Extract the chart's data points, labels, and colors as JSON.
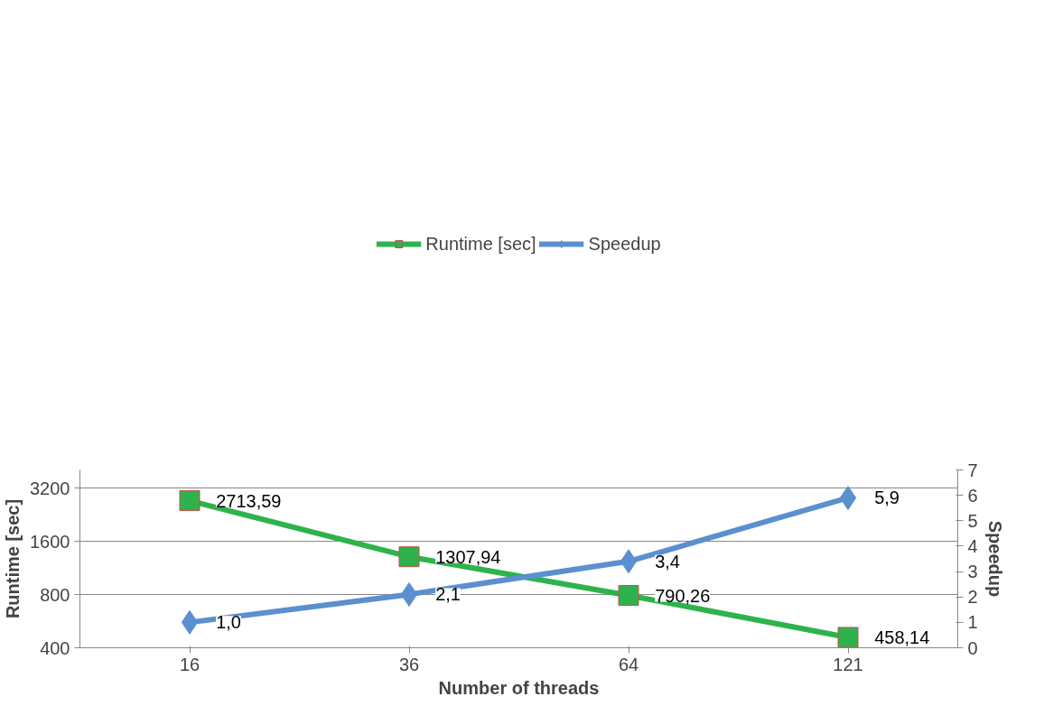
{
  "chart_data": {
    "type": "line",
    "xlabel": "Number of threads",
    "ylabel": "Runtime [sec]",
    "y2label": "Speedup",
    "categories": [
      "16",
      "36",
      "64",
      "121"
    ],
    "series": [
      {
        "name": "Runtime [sec]",
        "color": "#2eb34c",
        "marker": "square",
        "values": [
          2713.59,
          1307.94,
          790.26,
          458.14
        ],
        "value_labels": [
          "2713,59",
          "1307,94",
          "790,26",
          "458,14"
        ]
      },
      {
        "name": "Speedup",
        "color": "#5b8fcf",
        "marker": "diamond",
        "axis": "y2",
        "values": [
          1.0,
          2.1,
          3.4,
          5.9
        ],
        "value_labels": [
          "1,0",
          "2,1",
          "3,4",
          "5,9"
        ]
      }
    ],
    "log": "y",
    "ylim": [
      400,
      4050
    ],
    "yticks": [
      400,
      800,
      1600,
      3200
    ],
    "y2lim": [
      0,
      7
    ],
    "y2ticks": [
      0,
      1,
      2,
      3,
      4,
      5,
      6,
      7
    ],
    "grid": "y",
    "legend": "top",
    "line_style": "solid"
  }
}
